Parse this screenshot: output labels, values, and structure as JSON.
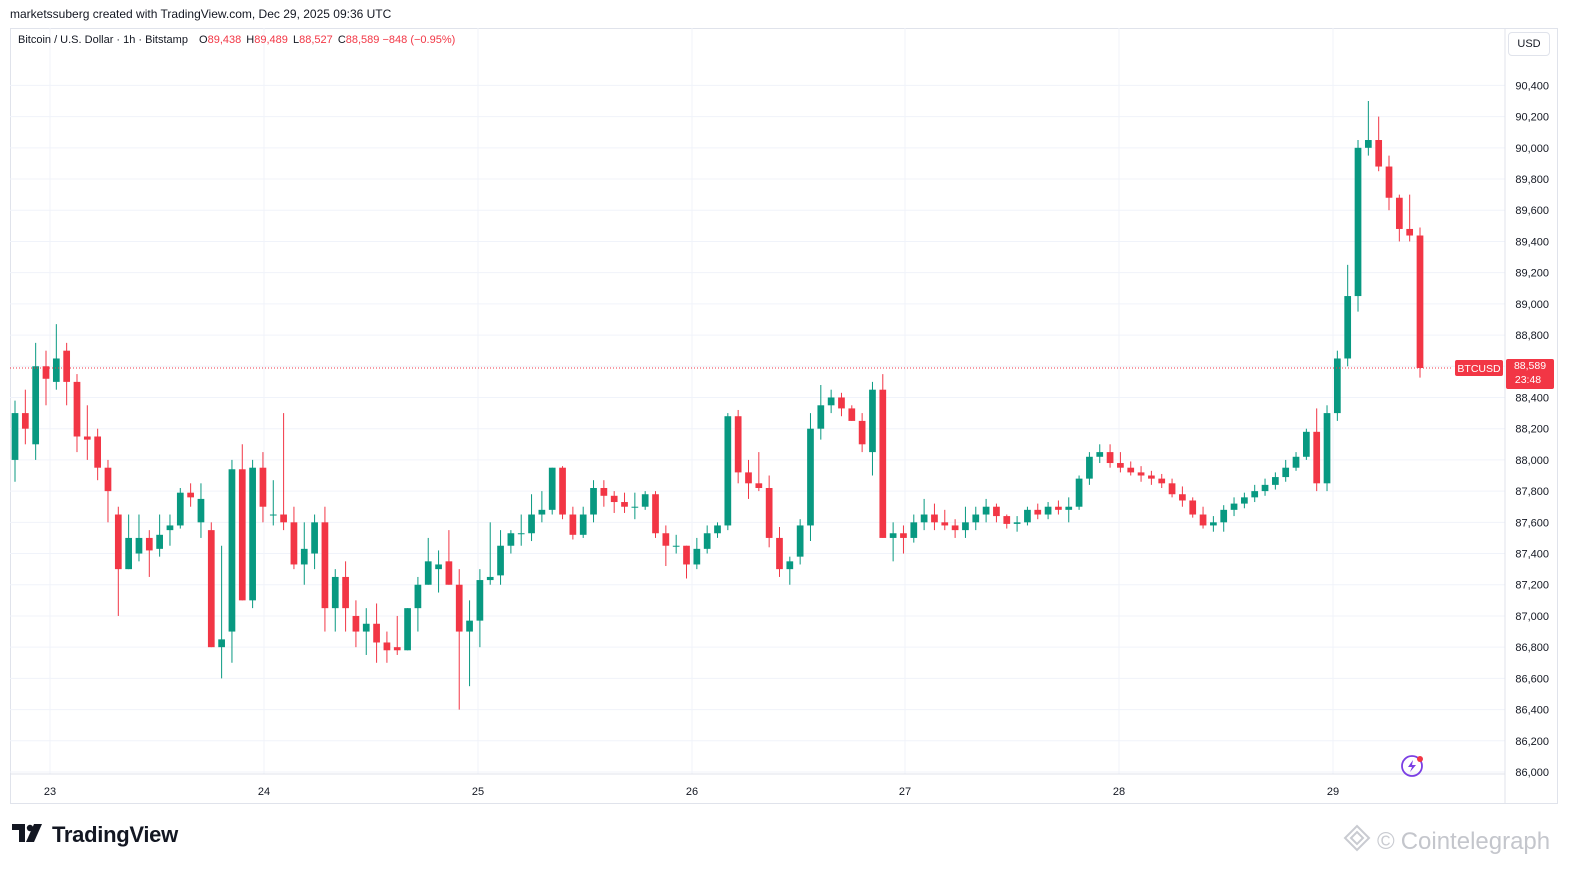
{
  "header": {
    "text": "marketssuberg created with TradingView.com, Dec 29, 2025 09:36 UTC"
  },
  "legend": {
    "symbol": "Bitcoin / U.S. Dollar · 1h · Bitstamp",
    "open_label": "O",
    "open": "89,438",
    "high_label": "H",
    "high": "89,489",
    "low_label": "L",
    "low": "88,527",
    "close_label": "C",
    "close": "88,589",
    "change": "−848 (−0.95%)"
  },
  "currency_button": "USD",
  "price_tag": {
    "symbol": "BTCUSD",
    "price": "88,589",
    "countdown": "23:48"
  },
  "footer": {
    "brand": "TradingView",
    "watermark": "Cointelegraph"
  },
  "colors": {
    "up": "#089981",
    "down": "#f23645",
    "grid": "#f0f3fa",
    "text": "#131722",
    "price_line": "#f23645"
  },
  "icons": {
    "brand_logo": "tradingview-logo-icon",
    "watermark_logo": "cointelegraph-logo-icon",
    "corner_badge": "lightning-badge-icon"
  },
  "chart_data": {
    "type": "candlestick",
    "timeframe": "1h",
    "ylim": [
      86000,
      90500
    ],
    "y_ticks": [
      86000,
      86200,
      86400,
      86600,
      86800,
      87000,
      87200,
      87400,
      87600,
      87800,
      88000,
      88200,
      88400,
      88600,
      88800,
      89000,
      89200,
      89400,
      89600,
      89800,
      90000,
      90200,
      90400
    ],
    "x_tick_labels": [
      "23",
      "24",
      "25",
      "26",
      "27",
      "28",
      "29"
    ],
    "last_price": 88589,
    "candles": [
      {
        "o": 88000,
        "h": 88380,
        "l": 87860,
        "c": 88300
      },
      {
        "o": 88300,
        "h": 88450,
        "l": 88100,
        "c": 88200
      },
      {
        "o": 88100,
        "h": 88750,
        "l": 88000,
        "c": 88600
      },
      {
        "o": 88600,
        "h": 88700,
        "l": 88350,
        "c": 88520
      },
      {
        "o": 88500,
        "h": 88870,
        "l": 88450,
        "c": 88650
      },
      {
        "o": 88700,
        "h": 88750,
        "l": 88350,
        "c": 88500
      },
      {
        "o": 88500,
        "h": 88550,
        "l": 88050,
        "c": 88150
      },
      {
        "o": 88150,
        "h": 88350,
        "l": 88000,
        "c": 88130
      },
      {
        "o": 88150,
        "h": 88200,
        "l": 87870,
        "c": 87950
      },
      {
        "o": 87950,
        "h": 88000,
        "l": 87600,
        "c": 87800
      },
      {
        "o": 87650,
        "h": 87700,
        "l": 87000,
        "c": 87300
      },
      {
        "o": 87300,
        "h": 87650,
        "l": 87300,
        "c": 87500
      },
      {
        "o": 87400,
        "h": 87650,
        "l": 87350,
        "c": 87500
      },
      {
        "o": 87500,
        "h": 87550,
        "l": 87250,
        "c": 87420
      },
      {
        "o": 87430,
        "h": 87650,
        "l": 87380,
        "c": 87520
      },
      {
        "o": 87550,
        "h": 87650,
        "l": 87450,
        "c": 87580
      },
      {
        "o": 87580,
        "h": 87820,
        "l": 87560,
        "c": 87790
      },
      {
        "o": 87790,
        "h": 87850,
        "l": 87700,
        "c": 87760
      },
      {
        "o": 87600,
        "h": 87850,
        "l": 87500,
        "c": 87750
      },
      {
        "o": 87550,
        "h": 87600,
        "l": 86800,
        "c": 86800
      },
      {
        "o": 86800,
        "h": 87450,
        "l": 86600,
        "c": 86850
      },
      {
        "o": 86900,
        "h": 88000,
        "l": 86700,
        "c": 87940
      },
      {
        "o": 87940,
        "h": 88100,
        "l": 87100,
        "c": 87100
      },
      {
        "o": 87100,
        "h": 88000,
        "l": 87050,
        "c": 87950
      },
      {
        "o": 87950,
        "h": 88050,
        "l": 87600,
        "c": 87700
      },
      {
        "o": 87650,
        "h": 87870,
        "l": 87580,
        "c": 87650
      },
      {
        "o": 87650,
        "h": 88300,
        "l": 87550,
        "c": 87600
      },
      {
        "o": 87600,
        "h": 87700,
        "l": 87300,
        "c": 87330
      },
      {
        "o": 87330,
        "h": 87600,
        "l": 87200,
        "c": 87430
      },
      {
        "o": 87400,
        "h": 87650,
        "l": 87300,
        "c": 87600
      },
      {
        "o": 87600,
        "h": 87700,
        "l": 86900,
        "c": 87050
      },
      {
        "o": 87050,
        "h": 87300,
        "l": 86900,
        "c": 87250
      },
      {
        "o": 87250,
        "h": 87350,
        "l": 86900,
        "c": 87050
      },
      {
        "o": 87000,
        "h": 87100,
        "l": 86800,
        "c": 86900
      },
      {
        "o": 86900,
        "h": 87050,
        "l": 86750,
        "c": 86950
      },
      {
        "o": 86950,
        "h": 87080,
        "l": 86700,
        "c": 86830
      },
      {
        "o": 86830,
        "h": 86900,
        "l": 86700,
        "c": 86780
      },
      {
        "o": 86800,
        "h": 87000,
        "l": 86750,
        "c": 86780
      },
      {
        "o": 86780,
        "h": 87050,
        "l": 86780,
        "c": 87050
      },
      {
        "o": 87050,
        "h": 87250,
        "l": 86900,
        "c": 87200
      },
      {
        "o": 87200,
        "h": 87500,
        "l": 87200,
        "c": 87350
      },
      {
        "o": 87300,
        "h": 87420,
        "l": 87150,
        "c": 87330
      },
      {
        "o": 87350,
        "h": 87550,
        "l": 87200,
        "c": 87200
      },
      {
        "o": 87200,
        "h": 87300,
        "l": 86400,
        "c": 86900
      },
      {
        "o": 86900,
        "h": 87100,
        "l": 86550,
        "c": 86970
      },
      {
        "o": 86970,
        "h": 87300,
        "l": 86800,
        "c": 87230
      },
      {
        "o": 87230,
        "h": 87600,
        "l": 87200,
        "c": 87250
      },
      {
        "o": 87260,
        "h": 87550,
        "l": 87200,
        "c": 87450
      },
      {
        "o": 87450,
        "h": 87550,
        "l": 87400,
        "c": 87530
      },
      {
        "o": 87530,
        "h": 87650,
        "l": 87450,
        "c": 87530
      },
      {
        "o": 87530,
        "h": 87780,
        "l": 87480,
        "c": 87650
      },
      {
        "o": 87650,
        "h": 87800,
        "l": 87600,
        "c": 87680
      },
      {
        "o": 87680,
        "h": 87950,
        "l": 87650,
        "c": 87950
      },
      {
        "o": 87950,
        "h": 87960,
        "l": 87620,
        "c": 87650
      },
      {
        "o": 87650,
        "h": 87700,
        "l": 87490,
        "c": 87520
      },
      {
        "o": 87520,
        "h": 87700,
        "l": 87500,
        "c": 87650
      },
      {
        "o": 87650,
        "h": 87870,
        "l": 87600,
        "c": 87820
      },
      {
        "o": 87820,
        "h": 87870,
        "l": 87700,
        "c": 87770
      },
      {
        "o": 87770,
        "h": 87800,
        "l": 87660,
        "c": 87730
      },
      {
        "o": 87730,
        "h": 87790,
        "l": 87660,
        "c": 87700
      },
      {
        "o": 87700,
        "h": 87790,
        "l": 87620,
        "c": 87700
      },
      {
        "o": 87700,
        "h": 87800,
        "l": 87680,
        "c": 87780
      },
      {
        "o": 87780,
        "h": 87800,
        "l": 87500,
        "c": 87530
      },
      {
        "o": 87530,
        "h": 87580,
        "l": 87320,
        "c": 87450
      },
      {
        "o": 87450,
        "h": 87520,
        "l": 87400,
        "c": 87450
      },
      {
        "o": 87450,
        "h": 87450,
        "l": 87240,
        "c": 87330
      },
      {
        "o": 87330,
        "h": 87500,
        "l": 87300,
        "c": 87430
      },
      {
        "o": 87430,
        "h": 87580,
        "l": 87400,
        "c": 87530
      },
      {
        "o": 87530,
        "h": 87600,
        "l": 87500,
        "c": 87580
      },
      {
        "o": 87580,
        "h": 88300,
        "l": 87550,
        "c": 88280
      },
      {
        "o": 88280,
        "h": 88320,
        "l": 87850,
        "c": 87920
      },
      {
        "o": 87920,
        "h": 88000,
        "l": 87750,
        "c": 87850
      },
      {
        "o": 87850,
        "h": 88050,
        "l": 87800,
        "c": 87820
      },
      {
        "o": 87820,
        "h": 87900,
        "l": 87440,
        "c": 87500
      },
      {
        "o": 87500,
        "h": 87570,
        "l": 87250,
        "c": 87300
      },
      {
        "o": 87300,
        "h": 87380,
        "l": 87200,
        "c": 87350
      },
      {
        "o": 87380,
        "h": 87620,
        "l": 87330,
        "c": 87580
      },
      {
        "o": 87580,
        "h": 88300,
        "l": 87480,
        "c": 88200
      },
      {
        "o": 88200,
        "h": 88480,
        "l": 88130,
        "c": 88350
      },
      {
        "o": 88350,
        "h": 88450,
        "l": 88300,
        "c": 88400
      },
      {
        "o": 88400,
        "h": 88430,
        "l": 88280,
        "c": 88330
      },
      {
        "o": 88330,
        "h": 88350,
        "l": 88250,
        "c": 88250
      },
      {
        "o": 88250,
        "h": 88300,
        "l": 88050,
        "c": 88100
      },
      {
        "o": 88050,
        "h": 88500,
        "l": 87900,
        "c": 88450
      },
      {
        "o": 88450,
        "h": 88550,
        "l": 87500,
        "c": 87500
      },
      {
        "o": 87500,
        "h": 87600,
        "l": 87350,
        "c": 87530
      },
      {
        "o": 87530,
        "h": 87580,
        "l": 87400,
        "c": 87500
      },
      {
        "o": 87500,
        "h": 87650,
        "l": 87470,
        "c": 87600
      },
      {
        "o": 87600,
        "h": 87750,
        "l": 87550,
        "c": 87650
      },
      {
        "o": 87650,
        "h": 87720,
        "l": 87550,
        "c": 87600
      },
      {
        "o": 87600,
        "h": 87680,
        "l": 87550,
        "c": 87580
      },
      {
        "o": 87580,
        "h": 87620,
        "l": 87500,
        "c": 87550
      },
      {
        "o": 87550,
        "h": 87700,
        "l": 87500,
        "c": 87600
      },
      {
        "o": 87600,
        "h": 87700,
        "l": 87550,
        "c": 87650
      },
      {
        "o": 87650,
        "h": 87750,
        "l": 87600,
        "c": 87700
      },
      {
        "o": 87700,
        "h": 87720,
        "l": 87600,
        "c": 87640
      },
      {
        "o": 87640,
        "h": 87650,
        "l": 87560,
        "c": 87590
      },
      {
        "o": 87590,
        "h": 87640,
        "l": 87540,
        "c": 87600
      },
      {
        "o": 87600,
        "h": 87700,
        "l": 87580,
        "c": 87680
      },
      {
        "o": 87680,
        "h": 87720,
        "l": 87620,
        "c": 87650
      },
      {
        "o": 87650,
        "h": 87730,
        "l": 87620,
        "c": 87700
      },
      {
        "o": 87700,
        "h": 87740,
        "l": 87650,
        "c": 87680
      },
      {
        "o": 87680,
        "h": 87760,
        "l": 87600,
        "c": 87700
      },
      {
        "o": 87700,
        "h": 87900,
        "l": 87680,
        "c": 87880
      },
      {
        "o": 87880,
        "h": 88050,
        "l": 87840,
        "c": 88020
      },
      {
        "o": 88020,
        "h": 88100,
        "l": 87980,
        "c": 88050
      },
      {
        "o": 88050,
        "h": 88100,
        "l": 87950,
        "c": 87980
      },
      {
        "o": 87980,
        "h": 88050,
        "l": 87920,
        "c": 87950
      },
      {
        "o": 87950,
        "h": 87990,
        "l": 87900,
        "c": 87920
      },
      {
        "o": 87920,
        "h": 87960,
        "l": 87860,
        "c": 87900
      },
      {
        "o": 87900,
        "h": 87930,
        "l": 87840,
        "c": 87880
      },
      {
        "o": 87880,
        "h": 87910,
        "l": 87820,
        "c": 87850
      },
      {
        "o": 87850,
        "h": 87880,
        "l": 87760,
        "c": 87780
      },
      {
        "o": 87780,
        "h": 87830,
        "l": 87700,
        "c": 87740
      },
      {
        "o": 87740,
        "h": 87760,
        "l": 87630,
        "c": 87650
      },
      {
        "o": 87650,
        "h": 87700,
        "l": 87560,
        "c": 87580
      },
      {
        "o": 87580,
        "h": 87640,
        "l": 87540,
        "c": 87600
      },
      {
        "o": 87600,
        "h": 87710,
        "l": 87540,
        "c": 87680
      },
      {
        "o": 87680,
        "h": 87760,
        "l": 87640,
        "c": 87720
      },
      {
        "o": 87720,
        "h": 87790,
        "l": 87690,
        "c": 87760
      },
      {
        "o": 87760,
        "h": 87840,
        "l": 87730,
        "c": 87800
      },
      {
        "o": 87800,
        "h": 87880,
        "l": 87770,
        "c": 87840
      },
      {
        "o": 87840,
        "h": 87920,
        "l": 87810,
        "c": 87890
      },
      {
        "o": 87890,
        "h": 88000,
        "l": 87860,
        "c": 87950
      },
      {
        "o": 87950,
        "h": 88050,
        "l": 87930,
        "c": 88020
      },
      {
        "o": 88020,
        "h": 88200,
        "l": 88000,
        "c": 88180
      },
      {
        "o": 88180,
        "h": 88330,
        "l": 87800,
        "c": 87850
      },
      {
        "o": 87850,
        "h": 88350,
        "l": 87800,
        "c": 88300
      },
      {
        "o": 88300,
        "h": 88700,
        "l": 88250,
        "c": 88650
      },
      {
        "o": 88650,
        "h": 89250,
        "l": 88600,
        "c": 89050
      },
      {
        "o": 89050,
        "h": 90050,
        "l": 88950,
        "c": 90000
      },
      {
        "o": 90000,
        "h": 90300,
        "l": 89950,
        "c": 90050
      },
      {
        "o": 90050,
        "h": 90200,
        "l": 89850,
        "c": 89880
      },
      {
        "o": 89880,
        "h": 89950,
        "l": 89600,
        "c": 89680
      },
      {
        "o": 89680,
        "h": 89700,
        "l": 89400,
        "c": 89480
      },
      {
        "o": 89480,
        "h": 89700,
        "l": 89400,
        "c": 89438
      },
      {
        "o": 89438,
        "h": 89489,
        "l": 88527,
        "c": 88589
      }
    ]
  }
}
